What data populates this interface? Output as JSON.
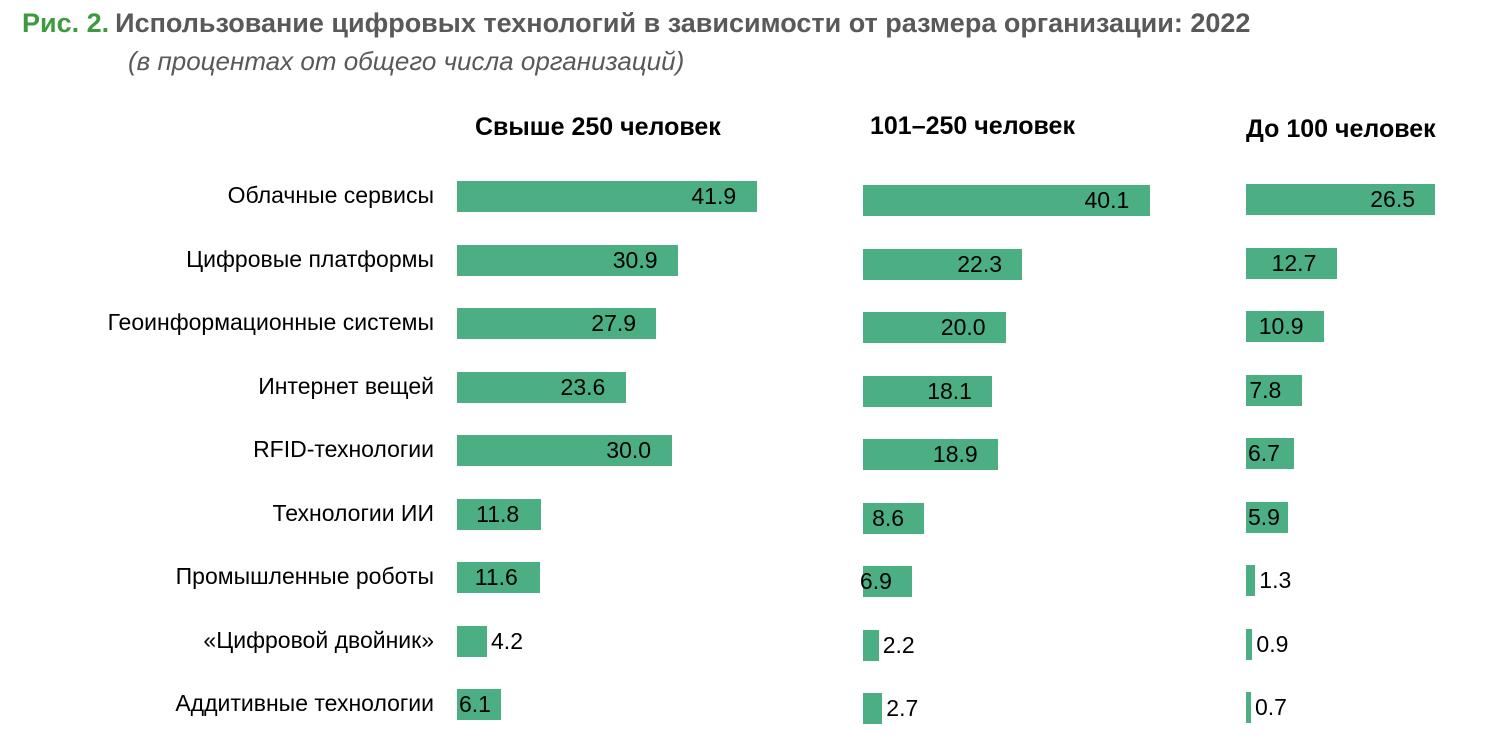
{
  "figure": {
    "label": "Рис. 2.",
    "title": "Использование цифровых технологий в зависимости от размера организации: 2022",
    "subtitle": "(в процентах от общего числа организаций)"
  },
  "colors": {
    "bar": "#4caf84",
    "figure_label": "#3d9a3d",
    "title_text": "#595959"
  },
  "chart_data": {
    "type": "bar",
    "orientation": "horizontal",
    "categories": [
      "Облачные сервисы",
      "Цифровые платформы",
      "Геоинформационные системы",
      "Интернет вещей",
      "RFID-технологии",
      "Технологии ИИ",
      "Промышленные роботы",
      "«Цифровой двойник»",
      "Аддитивные технологии"
    ],
    "series": [
      {
        "name": "Свыше 250 человек",
        "values": [
          41.9,
          30.9,
          27.9,
          23.6,
          30.0,
          11.8,
          11.6,
          4.2,
          6.1
        ]
      },
      {
        "name": "101–250 человек",
        "values": [
          40.1,
          22.3,
          20.0,
          18.1,
          18.9,
          8.6,
          6.9,
          2.2,
          2.7
        ]
      },
      {
        "name": "До 100 человек",
        "values": [
          26.5,
          12.7,
          10.9,
          7.8,
          6.7,
          5.9,
          1.3,
          0.9,
          0.7
        ]
      }
    ],
    "value_format": "one-decimal",
    "layout": "small-multiples",
    "grid": false,
    "legend": "none"
  }
}
